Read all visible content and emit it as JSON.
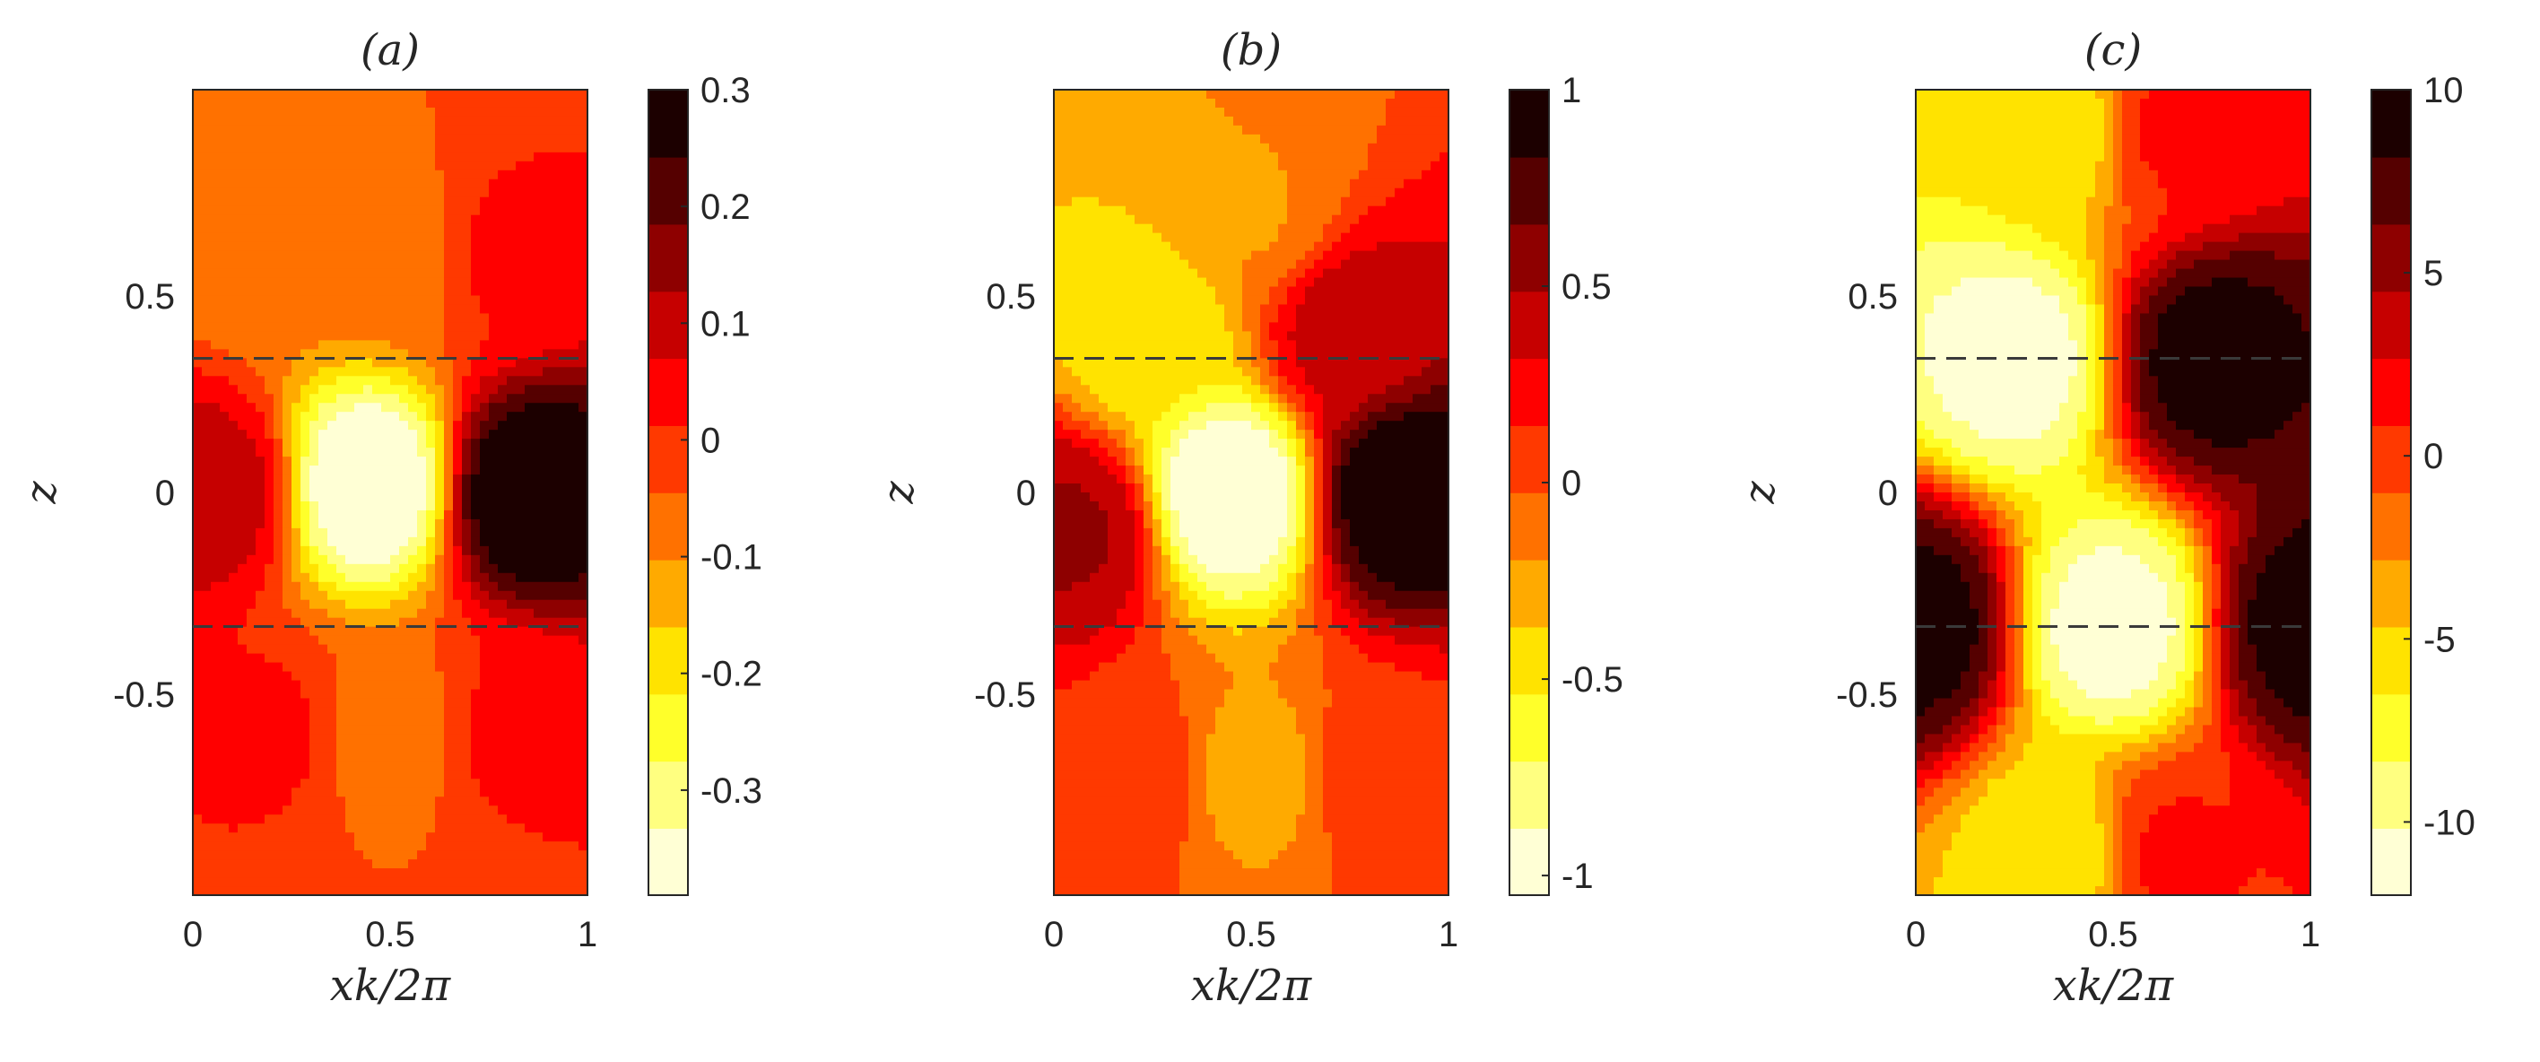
{
  "chart_data": [
    {
      "type": "heatmap",
      "panel_label": "(a)",
      "xlabel": "xk/2π",
      "ylabel": "z",
      "xlim": [
        0,
        1
      ],
      "ylim": [
        -1,
        1
      ],
      "x_ticks": [
        "0",
        "0.5",
        "1"
      ],
      "y_ticks": [
        "-0.5",
        "0",
        "0.5"
      ],
      "dashed_lines_z": [
        0.333,
        -0.333
      ],
      "colorbar": {
        "min": -0.39,
        "max": 0.3,
        "ticks": [
          "0.3",
          "0.2",
          "0.1",
          "0",
          "-0.1",
          "-0.2",
          "-0.3"
        ],
        "tick_values": [
          0.3,
          0.2,
          0.1,
          0,
          -0.1,
          -0.2,
          -0.3
        ]
      },
      "features": [
        {
          "x": 0.05,
          "z": 0.0,
          "value": 0.1
        },
        {
          "x": 0.2,
          "z": 0.6,
          "value": -0.08
        },
        {
          "x": 0.2,
          "z": -0.6,
          "value": 0.02
        },
        {
          "x": 0.5,
          "z": -0.6,
          "value": -0.08
        },
        {
          "x": 0.5,
          "z": 0.6,
          "value": -0.08
        },
        {
          "x": 0.8,
          "z": 0.6,
          "value": 0.02
        },
        {
          "x": 0.8,
          "z": -0.6,
          "value": 0.02
        },
        {
          "x": 0.45,
          "z": 0.02,
          "value": -0.39
        },
        {
          "x": 0.85,
          "z": 0.0,
          "value": 0.3
        }
      ]
    },
    {
      "type": "heatmap",
      "panel_label": "(b)",
      "xlabel": "xk/2π",
      "ylabel": "z",
      "xlim": [
        0,
        1
      ],
      "ylim": [
        -1,
        1
      ],
      "x_ticks": [
        "0",
        "0.5",
        "1"
      ],
      "y_ticks": [
        "-0.5",
        "0",
        "0.5"
      ],
      "dashed_lines_z": [
        0.333,
        -0.333
      ],
      "colorbar": {
        "min": -1.05,
        "max": 1.0,
        "ticks": [
          "1",
          "0.5",
          "0",
          "-0.5",
          "-1"
        ],
        "tick_values": [
          1,
          0.5,
          0,
          -0.5,
          -1
        ]
      },
      "features": [
        {
          "x": 0.05,
          "z": -0.1,
          "value": 0.5
        },
        {
          "x": 0.2,
          "z": -0.7,
          "value": 0.1
        },
        {
          "x": 0.25,
          "z": 0.4,
          "value": -0.5
        },
        {
          "x": 0.5,
          "z": -0.7,
          "value": -0.25
        },
        {
          "x": 0.5,
          "z": 0.7,
          "value": -0.2
        },
        {
          "x": 0.75,
          "z": 0.4,
          "value": 0.4
        },
        {
          "x": 0.85,
          "z": -0.7,
          "value": 0.1
        },
        {
          "x": 0.45,
          "z": 0.0,
          "value": -1.05
        },
        {
          "x": 0.88,
          "z": 0.0,
          "value": 1.0
        }
      ]
    },
    {
      "type": "heatmap",
      "panel_label": "(c)",
      "xlabel": "xk/2π",
      "ylabel": "z",
      "xlim": [
        0,
        1
      ],
      "ylim": [
        -1,
        1
      ],
      "x_ticks": [
        "0",
        "0.5",
        "1"
      ],
      "y_ticks": [
        "-0.5",
        "0",
        "0.5"
      ],
      "dashed_lines_z": [
        0.333,
        -0.333
      ],
      "colorbar": {
        "min": -12,
        "max": 10,
        "ticks": [
          "10",
          "5",
          "0",
          "-5",
          "-10"
        ],
        "tick_values": [
          10,
          5,
          0,
          -5,
          -10
        ]
      },
      "features": [
        {
          "x": 0.0,
          "z": -0.333,
          "value": 9
        },
        {
          "x": 0.25,
          "z": 0.333,
          "value": -11
        },
        {
          "x": 0.5,
          "z": -0.333,
          "value": -11
        },
        {
          "x": 0.75,
          "z": 0.333,
          "value": 9
        },
        {
          "x": 1.0,
          "z": -0.333,
          "value": 9
        },
        {
          "x": 0.35,
          "z": 0.9,
          "value": -6
        },
        {
          "x": 0.35,
          "z": -0.9,
          "value": -6
        },
        {
          "x": 0.65,
          "z": 0.9,
          "value": 1
        },
        {
          "x": 0.65,
          "z": -0.9,
          "value": 1
        }
      ]
    }
  ]
}
